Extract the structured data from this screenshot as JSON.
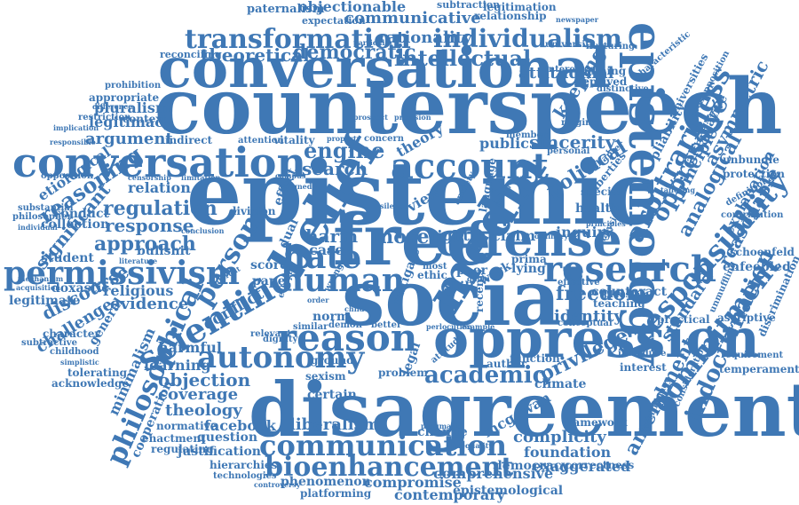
{
  "word_cloud": {
    "color": "#3f78b5",
    "words": [
      "epistemic",
      "counterspeech",
      "conversational",
      "disagreement",
      "social",
      "oppression",
      "free",
      "offense",
      "conversation",
      "epistemology",
      "belief",
      "media",
      "reason",
      "account",
      "hate",
      "research",
      "human",
      "permissivism",
      "autonomy",
      "communication",
      "bioenhancement",
      "transformation",
      "person",
      "scientific",
      "responsibility",
      "commitment",
      "arbitrariness",
      "individualism",
      "intellectual",
      "theoretical",
      "democratic",
      "rationality",
      "communicative",
      "objectionable",
      "paternalism",
      "legitimation",
      "relationship",
      "subtraction",
      "expectation",
      "reconciling",
      "particular",
      "attitudinal",
      "university",
      "nurturing",
      "newspaper",
      "keeping",
      "more",
      "engine",
      "search",
      "sincerity",
      "political",
      "theory",
      "oppressive",
      "analogical",
      "principle",
      "asymmetric",
      "explanation",
      "reasonable",
      "indoctrination",
      "amendment",
      "privilege",
      "academic",
      "objection",
      "coverage",
      "theology",
      "facebook",
      "liberalism",
      "complicity",
      "foundation",
      "democracy",
      "mcgowan",
      "philosophical",
      "reasoning",
      "regulation",
      "response",
      "approach",
      "relation",
      "argument",
      "legitimacy",
      "pluralism",
      "context",
      "appropriate",
      "etiological",
      "significant",
      "collection",
      "conduct",
      "student",
      "legitimate",
      "doxastic",
      "discourse",
      "evidence",
      "religious",
      "challenge",
      "harmful",
      "learning",
      "general",
      "cooperation",
      "minimalism",
      "justification",
      "question",
      "hierarchies",
      "compromise",
      "comprehensive",
      "exaggerated",
      "epistemological",
      "contemporary",
      "phenomenon",
      "platforming",
      "technologies",
      "controversy",
      "conflict",
      "identity",
      "freedom",
      "counteract",
      "standard",
      "practical",
      "enfeebled",
      "schoenfeld",
      "discrimination",
      "protection",
      "unbundle",
      "temperament",
      "requirement",
      "deprived",
      "defining",
      "distinctive",
      "interested",
      "ringing",
      "concern",
      "vitality",
      "attention",
      "indirect",
      "prohibition",
      "difference",
      "restriction",
      "implication",
      "responsible",
      "opposition",
      "substantial",
      "philosopher",
      "individual",
      "mechanism",
      "acquisition",
      "character",
      "subtractive",
      "childhood",
      "simplistic",
      "tolerating",
      "acknowledge",
      "normative",
      "enactment",
      "regulating",
      "dignity",
      "relevant",
      "sexism",
      "certain",
      "climate",
      "interest",
      "introduce",
      "author",
      "function",
      "problem",
      "ground",
      "norm",
      "view",
      "inquiry",
      "claim",
      "right",
      "peer",
      "lying",
      "ethic",
      "most",
      "shill",
      "public",
      "member",
      "personal",
      "harm",
      "case",
      "score",
      "paper",
      "dual",
      "effect",
      "division",
      "bullshit",
      "change",
      "framework",
      "correctness",
      "pragmatic",
      "inequality",
      "work",
      "prima",
      "chapter",
      "health",
      "special",
      "teaching",
      "effective",
      "conceptual",
      "analysis",
      "ascriptive",
      "determinacy",
      "consideration",
      "contribution",
      "definitional",
      "unmuffling",
      "liberties",
      "plausible",
      "characteristic",
      "universities",
      "presupposition",
      "pliability",
      "alternative",
      "tailoring",
      "prospect",
      "provision",
      "property",
      "language",
      "anxiety",
      "pedagogy",
      "silence",
      "wrong",
      "guide",
      "recent",
      "better",
      "similar",
      "demon",
      "mitigate",
      "attitude",
      "legal",
      "ethical",
      "order",
      "different",
      "literature",
      "child",
      "conclusion",
      "limitation",
      "censorship",
      "example",
      "perlocution",
      "campus",
      "aligned",
      "ordinary",
      "principles"
    ]
  }
}
